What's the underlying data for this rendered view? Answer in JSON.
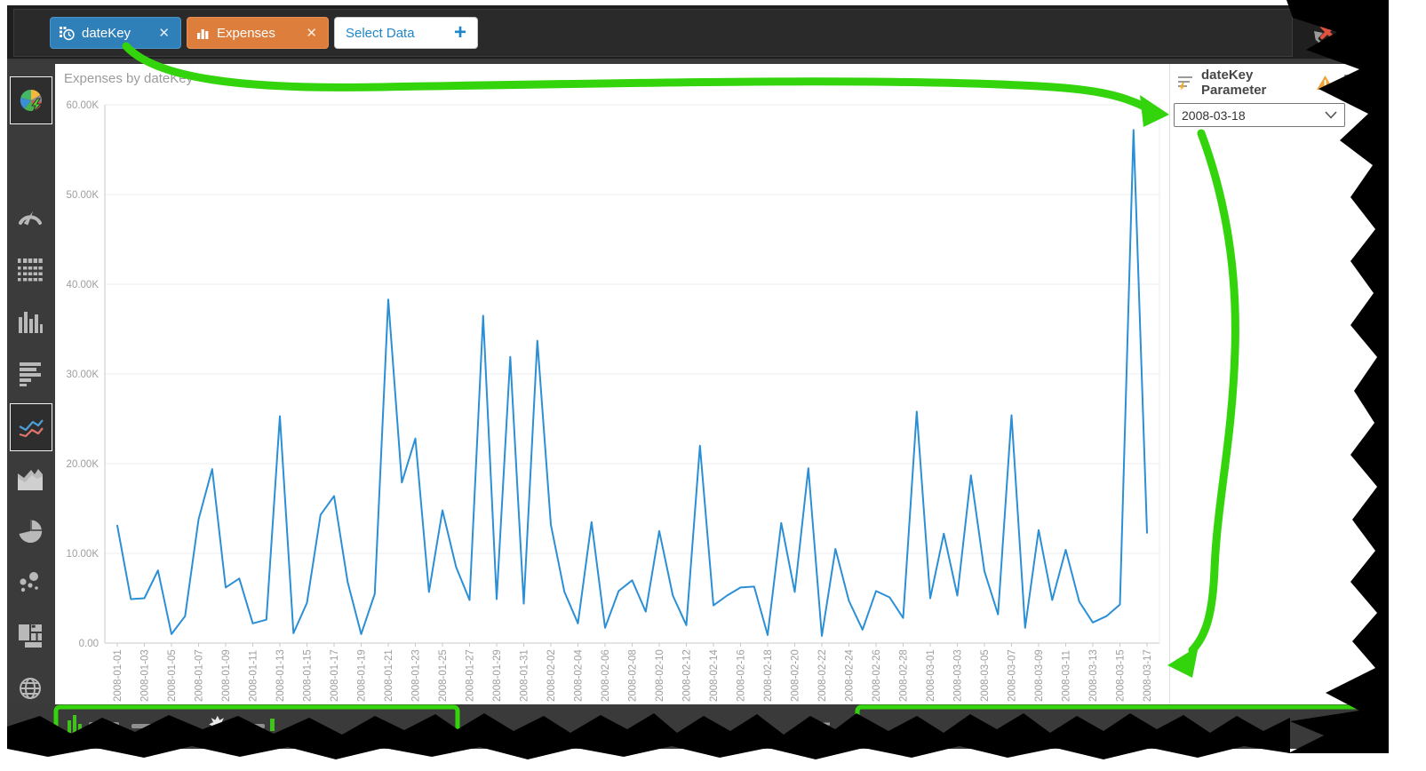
{
  "toolbar": {
    "tabs": [
      {
        "label": "dateKey",
        "icon": "datetime-hierarchy-icon",
        "color": "#2f7fb9",
        "close_label": "✕"
      },
      {
        "label": "Expenses",
        "icon": "measure-bars-icon",
        "color": "#dd7e3c",
        "close_label": "✕"
      },
      {
        "label": "Select Data",
        "icon": "none",
        "color": "#ffffff",
        "add_label": "+"
      }
    ],
    "reset_button": "revert-and-clear"
  },
  "sidebar": {
    "items": [
      {
        "name": "auto-chart",
        "selected": true
      },
      {
        "name": "gauge",
        "selected": false
      },
      {
        "name": "table",
        "selected": false
      },
      {
        "name": "bar-chart",
        "selected": false
      },
      {
        "name": "horizontal-bar-chart",
        "selected": false
      },
      {
        "name": "line-chart",
        "selected": true
      },
      {
        "name": "area-chart",
        "selected": false
      },
      {
        "name": "pie-chart",
        "selected": false
      },
      {
        "name": "scatter-plot",
        "selected": false
      },
      {
        "name": "treemap",
        "selected": false
      },
      {
        "name": "map",
        "selected": false
      }
    ]
  },
  "parameter_panel": {
    "title": "dateKey Parameter",
    "dropdown_value": "2008-03-18",
    "warning_icon": "warning-triangle",
    "menu_icon": "kebab-menu"
  },
  "chart_data": {
    "type": "line",
    "title": "Expenses by dateKey",
    "series_name": "Expenses",
    "x_start": "2008-01-01",
    "x_end": "2008-03-17",
    "x_interval": "daily",
    "x_tick_labels": [
      "2008-01-01",
      "2008-01-03",
      "2008-01-05",
      "2008-01-07",
      "2008-01-09",
      "2008-01-11",
      "2008-01-13",
      "2008-01-15",
      "2008-01-17",
      "2008-01-19",
      "2008-01-21",
      "2008-01-23",
      "2008-01-25",
      "2008-01-27",
      "2008-01-29",
      "2008-01-31",
      "2008-02-02",
      "2008-02-04",
      "2008-02-06",
      "2008-02-08",
      "2008-02-10",
      "2008-02-12",
      "2008-02-14",
      "2008-02-16",
      "2008-02-18",
      "2008-02-20",
      "2008-02-22",
      "2008-02-24",
      "2008-02-26",
      "2008-02-28",
      "2008-03-01",
      "2008-03-03",
      "2008-03-05",
      "2008-03-07",
      "2008-03-09",
      "2008-03-11",
      "2008-03-13",
      "2008-03-15",
      "2008-03-17"
    ],
    "values_unit": "thousands",
    "values_k": [
      13.1,
      4.9,
      5.0,
      8.1,
      1.0,
      3.0,
      13.8,
      19.4,
      6.2,
      7.2,
      2.2,
      2.6,
      25.3,
      1.1,
      4.5,
      14.3,
      16.4,
      6.8,
      1.0,
      5.5,
      38.3,
      17.9,
      22.8,
      5.7,
      14.8,
      8.5,
      4.8,
      36.5,
      4.9,
      31.9,
      4.4,
      33.7,
      13.2,
      5.7,
      2.2,
      13.5,
      1.7,
      5.8,
      7.0,
      3.5,
      12.5,
      5.3,
      2.0,
      22.0,
      4.2,
      5.3,
      6.2,
      6.3,
      0.9,
      13.4,
      5.7,
      19.5,
      0.8,
      10.5,
      4.7,
      1.5,
      5.8,
      5.1,
      2.8,
      25.8,
      5.0,
      12.2,
      5.3,
      18.7,
      8.0,
      3.2,
      25.4,
      1.7,
      12.6,
      4.8,
      10.4,
      4.6,
      2.3,
      3.0,
      4.3,
      57.2,
      12.3
    ],
    "y_ticks": [
      {
        "label": "60.00K",
        "value": 60
      },
      {
        "label": "50.00K",
        "value": 50
      },
      {
        "label": "40.00K",
        "value": 40
      },
      {
        "label": "30.00K",
        "value": 30
      },
      {
        "label": "20.00K",
        "value": 20
      },
      {
        "label": "10.00K",
        "value": 10
      },
      {
        "label": "0.00",
        "value": 0
      }
    ],
    "ylim_k": [
      0,
      60
    ],
    "grid": true,
    "legend": "none",
    "line_color": "#2b8fd6",
    "annotation_color": "#34d40c"
  }
}
